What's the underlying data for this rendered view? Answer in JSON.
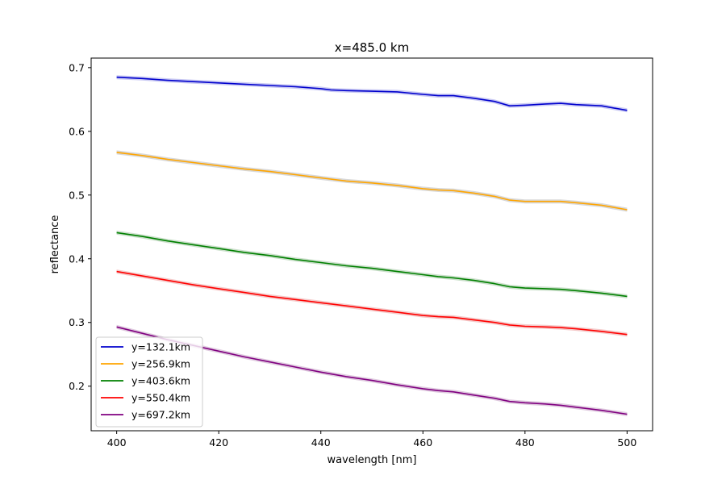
{
  "chart_data": {
    "type": "line",
    "title": "x=485.0 km",
    "xlabel": "wavelength [nm]",
    "ylabel": "reflectance",
    "xlim": [
      395,
      505
    ],
    "ylim": [
      0.13,
      0.715
    ],
    "xticks": [
      400,
      420,
      440,
      460,
      480,
      500
    ],
    "yticks": [
      0.2,
      0.3,
      0.4,
      0.5,
      0.6,
      0.7
    ],
    "grid": false,
    "legend_position": "lower-left",
    "series": [
      {
        "name": "y=132.1km",
        "color": "#0000cd",
        "band_color": "#b4b4ee",
        "x": [
          400,
          405,
          410,
          415,
          420,
          425,
          430,
          435,
          440,
          442,
          445,
          450,
          455,
          460,
          463,
          466,
          470,
          474,
          477,
          480,
          484,
          487,
          490,
          495,
          500
        ],
        "y": [
          0.685,
          0.683,
          0.68,
          0.678,
          0.676,
          0.674,
          0.672,
          0.67,
          0.667,
          0.665,
          0.664,
          0.663,
          0.662,
          0.658,
          0.656,
          0.656,
          0.652,
          0.647,
          0.64,
          0.641,
          0.643,
          0.644,
          0.642,
          0.64,
          0.633
        ]
      },
      {
        "name": "y=256.9km",
        "color": "#ffa500",
        "band_color": "#c8c8c8",
        "x": [
          400,
          405,
          410,
          415,
          420,
          425,
          430,
          435,
          440,
          445,
          450,
          455,
          460,
          463,
          466,
          470,
          474,
          477,
          480,
          484,
          487,
          490,
          495,
          500
        ],
        "y": [
          0.567,
          0.562,
          0.556,
          0.551,
          0.546,
          0.541,
          0.537,
          0.532,
          0.527,
          0.522,
          0.519,
          0.515,
          0.51,
          0.508,
          0.507,
          0.503,
          0.498,
          0.492,
          0.49,
          0.49,
          0.49,
          0.488,
          0.484,
          0.477
        ]
      },
      {
        "name": "y=403.6km",
        "color": "#008000",
        "band_color": "#b4d2b4",
        "x": [
          400,
          405,
          410,
          415,
          420,
          425,
          430,
          435,
          440,
          445,
          450,
          455,
          460,
          463,
          466,
          470,
          474,
          477,
          480,
          484,
          487,
          490,
          495,
          500
        ],
        "y": [
          0.441,
          0.435,
          0.428,
          0.422,
          0.416,
          0.41,
          0.405,
          0.399,
          0.394,
          0.389,
          0.385,
          0.38,
          0.375,
          0.372,
          0.37,
          0.366,
          0.361,
          0.356,
          0.354,
          0.353,
          0.352,
          0.35,
          0.346,
          0.341
        ]
      },
      {
        "name": "y=550.4km",
        "color": "#ff0000",
        "band_color": "#f0b4b4",
        "x": [
          400,
          405,
          410,
          415,
          420,
          425,
          430,
          435,
          440,
          445,
          450,
          455,
          460,
          463,
          466,
          470,
          474,
          477,
          480,
          484,
          487,
          490,
          495,
          500
        ],
        "y": [
          0.38,
          0.373,
          0.366,
          0.359,
          0.353,
          0.347,
          0.341,
          0.336,
          0.331,
          0.326,
          0.321,
          0.316,
          0.311,
          0.309,
          0.308,
          0.304,
          0.3,
          0.296,
          0.294,
          0.293,
          0.292,
          0.29,
          0.286,
          0.281
        ]
      },
      {
        "name": "y=697.2km",
        "color": "#800080",
        "band_color": "#d2b4d2",
        "x": [
          400,
          405,
          410,
          415,
          420,
          425,
          430,
          435,
          440,
          445,
          450,
          455,
          460,
          463,
          466,
          470,
          474,
          477,
          480,
          484,
          487,
          490,
          495,
          500
        ],
        "y": [
          0.293,
          0.283,
          0.273,
          0.264,
          0.255,
          0.246,
          0.238,
          0.23,
          0.222,
          0.215,
          0.209,
          0.202,
          0.196,
          0.193,
          0.191,
          0.186,
          0.181,
          0.176,
          0.174,
          0.172,
          0.17,
          0.167,
          0.162,
          0.156
        ]
      }
    ]
  }
}
